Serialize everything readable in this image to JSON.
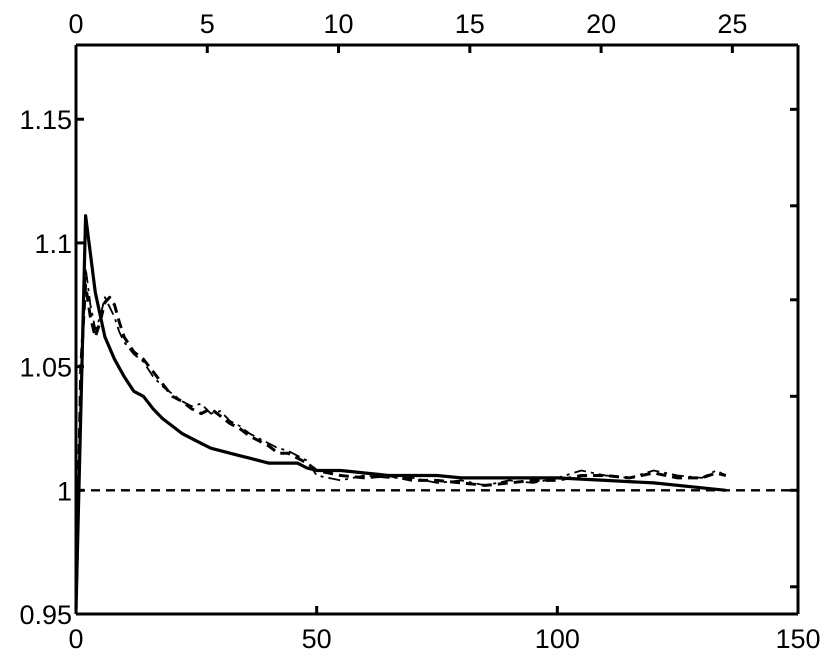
{
  "chart_data": {
    "type": "line",
    "title": "",
    "xlabel": "",
    "ylabel": "",
    "xlim": [
      0,
      150
    ],
    "ylim": [
      0.95,
      1.18
    ],
    "x_ticks": [
      0,
      50,
      100,
      150
    ],
    "x_tick_labels": [
      "0",
      "50",
      "100",
      "150"
    ],
    "y_ticks": [
      0.95,
      1,
      1.05,
      1.1,
      1.15
    ],
    "y_tick_labels": [
      "0.95",
      "1",
      "1.05",
      "1.1",
      "1.15"
    ],
    "top_axis": {
      "range": [
        0,
        27.5
      ],
      "ticks": [
        0,
        5,
        10,
        15,
        20,
        25
      ],
      "tick_labels": [
        "0",
        "5",
        "10",
        "15",
        "20",
        "25"
      ]
    },
    "right_axis_ticks": [
      0.961,
      1,
      1.038,
      1.077,
      1.115,
      1.154
    ],
    "grid": false,
    "legend": "none",
    "reference_line": {
      "y": 1,
      "style": "dashed"
    },
    "series": [
      {
        "style": "solid",
        "color": "#000000",
        "x": [
          0,
          2,
          4,
          6,
          8,
          10,
          12,
          14,
          16,
          18,
          20,
          22,
          24,
          26,
          28,
          30,
          32,
          34,
          36,
          38,
          40,
          42,
          44,
          46,
          48,
          50,
          55,
          60,
          65,
          70,
          75,
          80,
          85,
          90,
          95,
          100,
          110,
          120,
          130,
          135
        ],
        "y": [
          0.952,
          1.111,
          1.08,
          1.062,
          1.053,
          1.046,
          1.04,
          1.038,
          1.033,
          1.029,
          1.026,
          1.023,
          1.021,
          1.019,
          1.017,
          1.016,
          1.015,
          1.014,
          1.013,
          1.012,
          1.011,
          1.011,
          1.011,
          1.011,
          1.009,
          1.008,
          1.008,
          1.007,
          1.006,
          1.006,
          1.006,
          1.005,
          1.005,
          1.005,
          1.005,
          1.005,
          1.004,
          1.003,
          1.001,
          1.0
        ]
      },
      {
        "style": "dashed",
        "color": "#000000",
        "x": [
          0,
          1,
          2,
          3,
          4,
          5,
          6,
          7,
          8,
          9,
          10,
          12,
          14,
          16,
          18,
          20,
          22,
          24,
          26,
          28,
          30,
          32,
          34,
          36,
          38,
          40,
          42,
          44,
          46,
          48,
          50,
          55,
          60,
          65,
          70,
          75,
          80,
          85,
          90,
          95,
          100,
          105,
          110,
          115,
          120,
          125,
          130,
          133,
          135
        ],
        "y": [
          0.95,
          1.05,
          1.083,
          1.07,
          1.062,
          1.068,
          1.076,
          1.078,
          1.075,
          1.068,
          1.062,
          1.056,
          1.053,
          1.048,
          1.043,
          1.038,
          1.036,
          1.033,
          1.031,
          1.033,
          1.03,
          1.027,
          1.025,
          1.022,
          1.02,
          1.018,
          1.015,
          1.015,
          1.013,
          1.011,
          1.008,
          1.006,
          1.005,
          1.006,
          1.004,
          1.004,
          1.003,
          1.002,
          1.003,
          1.004,
          1.004,
          1.006,
          1.006,
          1.005,
          1.007,
          1.005,
          1.005,
          1.007,
          1.006
        ]
      },
      {
        "style": "dash-dot",
        "color": "#000000",
        "x": [
          0,
          1,
          2,
          3,
          4,
          5,
          6,
          7,
          8,
          9,
          10,
          12,
          14,
          16,
          18,
          20,
          22,
          24,
          26,
          28,
          30,
          32,
          34,
          36,
          38,
          40,
          42,
          44,
          46,
          48,
          50,
          55,
          60,
          65,
          70,
          75,
          80,
          85,
          90,
          95,
          100,
          105,
          110,
          115,
          120,
          125,
          130,
          133,
          135
        ],
        "y": [
          0.95,
          1.03,
          1.09,
          1.075,
          1.065,
          1.07,
          1.078,
          1.074,
          1.07,
          1.064,
          1.06,
          1.055,
          1.052,
          1.046,
          1.042,
          1.039,
          1.036,
          1.034,
          1.035,
          1.031,
          1.032,
          1.028,
          1.026,
          1.023,
          1.021,
          1.019,
          1.017,
          1.016,
          1.014,
          1.012,
          1.006,
          1.004,
          1.006,
          1.005,
          1.005,
          1.003,
          1.004,
          1.002,
          1.004,
          1.003,
          1.005,
          1.008,
          1.006,
          1.005,
          1.008,
          1.006,
          1.005,
          1.008,
          1.006
        ]
      }
    ]
  }
}
